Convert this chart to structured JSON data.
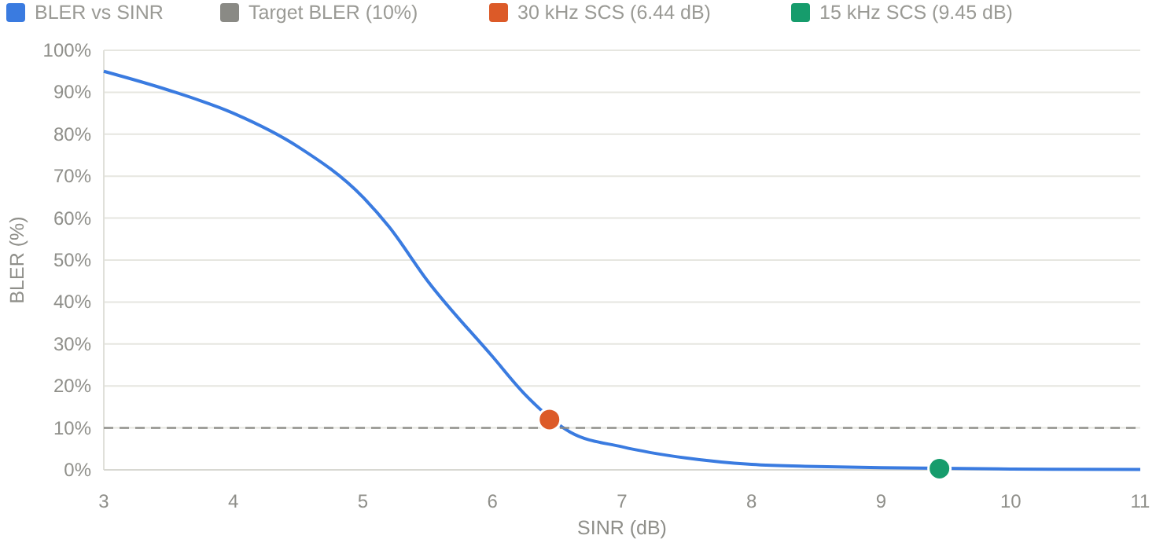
{
  "chart_data": {
    "type": "line",
    "xlabel": "SINR (dB)",
    "ylabel": "BLER (%)",
    "xlim": [
      3,
      11
    ],
    "xticks": [
      3,
      4,
      5,
      6,
      7,
      8,
      9,
      10,
      11
    ],
    "ylim": [
      0,
      100
    ],
    "yticks": [
      {
        "value": 0,
        "label": "0%"
      },
      {
        "value": 10,
        "label": "10%"
      },
      {
        "value": 20,
        "label": "20%"
      },
      {
        "value": 30,
        "label": "30%"
      },
      {
        "value": 40,
        "label": "40%"
      },
      {
        "value": 50,
        "label": "50%"
      },
      {
        "value": 60,
        "label": "60%"
      },
      {
        "value": 70,
        "label": "70%"
      },
      {
        "value": 80,
        "label": "80%"
      },
      {
        "value": 90,
        "label": "90%"
      },
      {
        "value": 100,
        "label": "100%"
      }
    ],
    "grid": "y",
    "legend": "top",
    "marker": "none",
    "series": [
      {
        "name": "BLER vs SINR",
        "color": "#3a7be0",
        "x": [
          3,
          3.5,
          4,
          4.5,
          5,
          5.2,
          5.5,
          6,
          6.25,
          6.6,
          7,
          7.5,
          8,
          8.5,
          9,
          10,
          11
        ],
        "values": [
          95,
          90.5,
          85,
          77,
          65,
          58,
          45,
          27,
          18,
          9,
          5.5,
          2.8,
          1.3,
          0.8,
          0.5,
          0.2,
          0.1
        ]
      },
      {
        "name": "Target BLER (10%)",
        "color": "#8a8a85",
        "line_style": "dashed",
        "x": [
          3,
          11
        ],
        "values": [
          10,
          10
        ]
      },
      {
        "name": "30 kHz SCS (6.44 dB)",
        "color": "#dc5a28",
        "type": "scatter",
        "marker": "circle",
        "x": [
          6.44
        ],
        "values": [
          12
        ]
      },
      {
        "name": "15 kHz SCS (9.45 dB)",
        "color": "#169c6c",
        "type": "scatter",
        "marker": "circle",
        "x": [
          9.45
        ],
        "values": [
          0.3
        ]
      }
    ]
  }
}
